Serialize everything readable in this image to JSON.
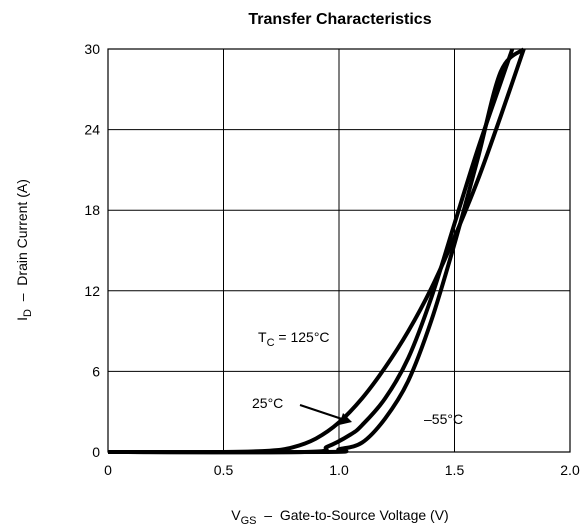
{
  "chart_data": {
    "type": "line",
    "title": "Transfer Characteristics",
    "xlabel": {
      "main": "V",
      "sub": "GS",
      "rest": "  –  Gate-to-Source Voltage (V)"
    },
    "ylabel": {
      "main": "I",
      "sub": "D",
      "rest": "  –  Drain Current (A)"
    },
    "xlim": [
      0,
      2.0
    ],
    "ylim": [
      0,
      30
    ],
    "xticks": [
      0,
      0.5,
      1.0,
      1.5,
      2.0
    ],
    "xtick_labels": [
      "0",
      "0.5",
      "1.0",
      "1.5",
      "2.0"
    ],
    "yticks": [
      0,
      6,
      12,
      18,
      24,
      30
    ],
    "ytick_labels": [
      "0",
      "6",
      "12",
      "18",
      "24",
      "30"
    ],
    "grid": true,
    "series": [
      {
        "name": "T_C = 125°C",
        "x": [
          0,
          0.5,
          0.7,
          0.8,
          0.9,
          1.0,
          1.1,
          1.2,
          1.3,
          1.4,
          1.5,
          1.6,
          1.7,
          1.8
        ],
        "y": [
          0,
          0,
          0.1,
          0.35,
          1.0,
          2.2,
          4.0,
          6.3,
          9.0,
          12.2,
          16.0,
          20.2,
          25.0,
          30.0
        ]
      },
      {
        "name": "25°C",
        "x": [
          0,
          0.85,
          0.95,
          1.05,
          1.1,
          1.2,
          1.3,
          1.4,
          1.5,
          1.6,
          1.7,
          1.75
        ],
        "y": [
          0,
          0,
          0.4,
          1.3,
          2.0,
          4.0,
          7.0,
          11.5,
          17.0,
          22.5,
          27.5,
          30.0
        ]
      },
      {
        "name": "–55°C",
        "x": [
          0,
          0.95,
          1.0,
          1.1,
          1.2,
          1.3,
          1.4,
          1.5,
          1.6,
          1.7,
          1.8
        ],
        "y": [
          0,
          0,
          0.2,
          0.7,
          2.5,
          5.3,
          9.8,
          15.5,
          21.8,
          28.3,
          30.0
        ]
      }
    ],
    "annotations": {
      "tc_main": "T",
      "tc_sub": "C",
      "tc_rest": " = 125°C",
      "t25": "25°C",
      "tm55": "–55°C"
    }
  }
}
